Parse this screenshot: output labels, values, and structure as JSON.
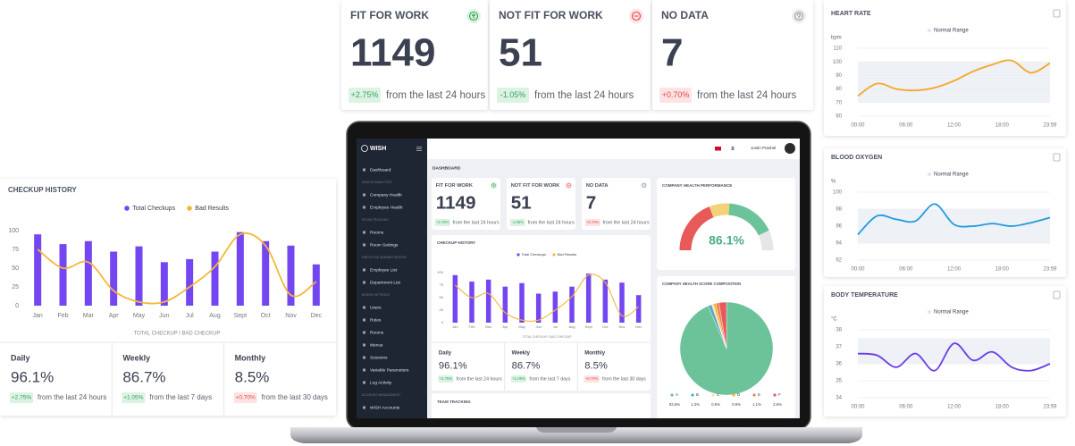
{
  "stat_cards": [
    {
      "title": "FIT FOR WORK",
      "value": 1149,
      "change": "+2.75%",
      "note": "from the last 24 hours",
      "color": "green",
      "icon": "up",
      "icon_color": "green"
    },
    {
      "title": "NOT FIT FOR WORK",
      "value": 51,
      "change": "-1.05%",
      "note": "from the last 24 hours",
      "color": "green",
      "icon": "minus",
      "icon_color": "red"
    },
    {
      "title": "NO DATA",
      "value": 7,
      "change": "+0.70%",
      "note": "from the last 24 hours",
      "color": "red",
      "icon": "question",
      "icon_color": "grey"
    }
  ],
  "vitals": [
    {
      "title": "HEART RATE",
      "unit": "bpm",
      "legend": "Normal Range",
      "color": "#f5a623",
      "ylim": [
        60,
        110
      ],
      "yticks": [
        60,
        70,
        80,
        90,
        100,
        110
      ],
      "normal_range": [
        70,
        100
      ],
      "xlim": [
        0,
        1439
      ],
      "xticks": [
        {
          "value": 0,
          "label": "00:00"
        },
        {
          "value": 360,
          "label": "06:00"
        },
        {
          "value": 720,
          "label": "12:00"
        },
        {
          "value": 1080,
          "label": "18:00"
        },
        {
          "value": 1439,
          "label": "23:59"
        }
      ],
      "x": [
        0,
        144,
        288,
        432,
        576,
        720,
        864,
        1008,
        1152,
        1296,
        1439
      ],
      "values": [
        75,
        84,
        80,
        79,
        81,
        86,
        93,
        98,
        101,
        92,
        99
      ]
    },
    {
      "title": "BLOOD OXYGEN",
      "unit": "%",
      "legend": "Normal Range",
      "color": "#1e9be0",
      "ylim": [
        92,
        100
      ],
      "yticks": [
        92,
        94,
        96,
        98,
        100
      ],
      "normal_range": [
        94,
        98
      ],
      "xlim": [
        0,
        1439
      ],
      "xticks": [
        {
          "value": 0,
          "label": "00:00"
        },
        {
          "value": 360,
          "label": "06:00"
        },
        {
          "value": 720,
          "label": "12:00"
        },
        {
          "value": 1080,
          "label": "18:00"
        },
        {
          "value": 1439,
          "label": "23:59"
        }
      ],
      "x": [
        0,
        144,
        288,
        432,
        576,
        720,
        864,
        1008,
        1152,
        1296,
        1439
      ],
      "values": [
        95,
        97.2,
        96.8,
        96.6,
        98.6,
        96.2,
        96,
        96.3,
        96,
        96.4,
        97
      ]
    },
    {
      "title": "BODY TEMPERATURE",
      "unit": "°C",
      "legend": "Normal Range",
      "color": "#6a3de8",
      "ylim": [
        34,
        38
      ],
      "yticks": [
        34,
        35,
        36,
        37,
        38
      ],
      "normal_range": [
        36,
        37.5
      ],
      "xlim": [
        0,
        1439
      ],
      "xticks": [
        {
          "value": 0,
          "label": "00:00"
        },
        {
          "value": 360,
          "label": "06:00"
        },
        {
          "value": 720,
          "label": "12:00"
        },
        {
          "value": 1080,
          "label": "18:00"
        },
        {
          "value": 1439,
          "label": "23:59"
        }
      ],
      "x": [
        0,
        144,
        288,
        432,
        576,
        720,
        864,
        1008,
        1152,
        1296,
        1439
      ],
      "values": [
        36.6,
        36.5,
        35.8,
        36.6,
        35.6,
        37.2,
        36.2,
        36.7,
        35.8,
        35.6,
        36
      ]
    }
  ],
  "checkup": {
    "title": "CHECKUP  HISTORY",
    "xlabel": "TOTAL CHECKUP / BAD CHECKUP",
    "categories": [
      "Jan",
      "Feb",
      "Mar",
      "Apr",
      "May",
      "Jun",
      "Jul",
      "Aug",
      "Sept",
      "Oct",
      "Nov",
      "Dec"
    ],
    "series": [
      {
        "name": "Total Checkups",
        "color": "#7446f2",
        "values": [
          95,
          82,
          86,
          72,
          79,
          58,
          62,
          72,
          98,
          86,
          80,
          55
        ]
      },
      {
        "name": "Bad Results",
        "color": "#f5b63a",
        "values": [
          75,
          50,
          58,
          20,
          5,
          5,
          25,
          52,
          95,
          80,
          14,
          32
        ]
      }
    ],
    "ylim": [
      0,
      100
    ],
    "yticks": [
      0,
      25,
      50,
      75,
      100
    ]
  },
  "summary": [
    {
      "period": "Daily",
      "value": "96.1%",
      "change": "+2.75%",
      "note": "from the last 24 hours",
      "color": "green"
    },
    {
      "period": "Weekly",
      "value": "86.7%",
      "change": "+1.05%",
      "note": "from the last 7 days",
      "color": "green"
    },
    {
      "period": "Monthly",
      "value": "8.5%",
      "change": "+0.70%",
      "note": "from the last 30 days",
      "color": "red"
    }
  ],
  "app": {
    "logo": "WISH",
    "user": "Justin Prashel",
    "page_title": "DASHBOARD",
    "team_tracking": "TEAM TRACKING",
    "sidebar": [
      {
        "label": "Dashboard",
        "heading": false
      },
      {
        "label": "HEALTH ANALYTICS",
        "heading": true
      },
      {
        "label": "Company Health",
        "heading": false
      },
      {
        "label": "Employee Health",
        "heading": false
      },
      {
        "label": "ROOM TRACKING",
        "heading": true
      },
      {
        "label": "Rooms",
        "heading": false
      },
      {
        "label": "Room Settings",
        "heading": false
      },
      {
        "label": "EMPLOYEE ADMINISTRATION",
        "heading": true
      },
      {
        "label": "Employee List",
        "heading": false
      },
      {
        "label": "Department List",
        "heading": false
      },
      {
        "label": "BOARD SETTINGS",
        "heading": true
      },
      {
        "label": "Users",
        "heading": false
      },
      {
        "label": "Roles",
        "heading": false
      },
      {
        "label": "Rooms",
        "heading": false
      },
      {
        "label": "Menus",
        "heading": false
      },
      {
        "label": "Sessions",
        "heading": false
      },
      {
        "label": "Variable Parameters",
        "heading": false
      },
      {
        "label": "Log Activity",
        "heading": false
      },
      {
        "label": "ACCOUNT MANAGEMENT",
        "heading": true
      },
      {
        "label": "WISH Accounts",
        "heading": false
      }
    ]
  },
  "performance": {
    "title": "COMPANY HEALTH PERFORMANCE",
    "value": 86.1,
    "value_label": "86.1%"
  },
  "composition": {
    "title": "COMPANY HEALTH SCORE COMPOSITION",
    "categories": [
      "A",
      "B",
      "C",
      "D",
      "E",
      "F"
    ],
    "values": [
      93.6,
      1.3,
      0.6,
      0.9,
      1.1,
      2.6
    ],
    "value_labels": [
      "93.6%",
      "1.3%",
      "0.6%",
      "0.9%",
      "1.1%",
      "2.6%"
    ],
    "colors": [
      "#6cc39a",
      "#5aa9c9",
      "#f3e3a0",
      "#f5b043",
      "#f07f4a",
      "#e85a5a"
    ]
  }
}
